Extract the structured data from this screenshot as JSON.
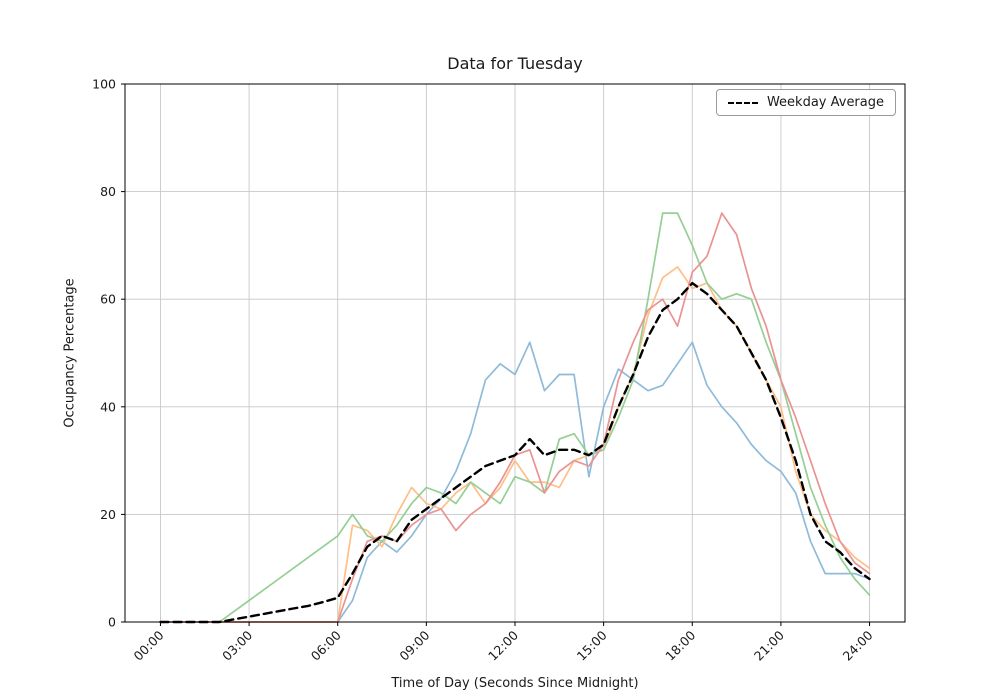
{
  "chart_data": {
    "type": "line",
    "title": "Data for Tuesday",
    "xlabel": "Time of Day (Seconds Since Midnight)",
    "ylabel": "Occupancy Percentage",
    "xlim": [
      -1.2,
      25.2
    ],
    "ylim": [
      0,
      100
    ],
    "grid": true,
    "legend_position": "upper right",
    "xticks": {
      "positions": [
        0,
        3,
        6,
        9,
        12,
        15,
        18,
        21,
        24
      ],
      "labels": [
        "00:00",
        "03:00",
        "06:00",
        "09:00",
        "12:00",
        "15:00",
        "18:00",
        "21:00",
        "24:00"
      ]
    },
    "yticks": [
      0,
      20,
      40,
      60,
      80,
      100
    ],
    "x_hours": [
      0,
      0.5,
      1,
      1.5,
      2,
      2.5,
      3,
      3.5,
      4,
      4.5,
      5,
      5.5,
      6,
      6.5,
      7,
      7.5,
      8,
      8.5,
      9,
      9.5,
      10,
      10.5,
      11,
      11.5,
      12,
      12.5,
      13,
      13.5,
      14,
      14.5,
      15,
      15.5,
      16,
      16.5,
      17,
      17.5,
      18,
      18.5,
      19,
      19.5,
      20,
      20.5,
      21,
      21.5,
      22,
      22.5,
      23,
      23.5,
      24
    ],
    "series": [
      {
        "id": "line-blue",
        "color": "#8fbbd9",
        "dashed": false,
        "values": [
          0,
          0,
          0,
          0,
          0,
          0,
          0,
          0,
          0,
          0,
          0,
          0,
          0,
          4,
          12,
          15,
          13,
          16,
          20,
          23,
          28,
          35,
          45,
          48,
          46,
          52,
          43,
          46,
          46,
          27,
          40,
          47,
          45,
          43,
          44,
          48,
          52,
          44,
          40,
          37,
          33,
          30,
          28,
          24,
          15,
          9,
          9,
          9,
          8
        ]
      },
      {
        "id": "line-orange",
        "color": "#ffbf86",
        "dashed": false,
        "values": [
          0,
          0,
          0,
          0,
          0,
          0,
          0,
          0,
          0,
          0,
          0,
          0,
          0,
          18,
          17,
          14,
          20,
          25,
          22,
          21,
          24,
          26,
          22,
          25,
          30,
          26,
          26,
          25,
          30,
          31,
          32,
          40,
          46,
          57,
          64,
          66,
          62,
          63,
          58,
          55,
          50,
          45,
          40,
          28,
          20,
          17,
          15,
          12,
          10
        ]
      },
      {
        "id": "line-green",
        "color": "#95cf95",
        "dashed": false,
        "values": [
          0,
          0,
          0,
          0,
          0,
          2,
          4,
          6,
          8,
          10,
          12,
          14,
          16,
          20,
          16,
          15,
          18,
          22,
          25,
          24,
          22,
          26,
          24,
          22,
          27,
          26,
          24,
          34,
          35,
          31,
          32,
          38,
          45,
          60,
          76,
          76,
          70,
          63,
          60,
          61,
          60,
          52,
          45,
          35,
          25,
          18,
          12,
          8,
          5
        ]
      },
      {
        "id": "line-red",
        "color": "#ea9393",
        "dashed": false,
        "values": [
          0,
          0,
          0,
          0,
          0,
          0,
          0,
          0,
          0,
          0,
          0,
          0,
          0,
          8,
          15,
          16,
          15,
          18,
          20,
          21,
          17,
          20,
          22,
          26,
          31,
          32,
          24,
          28,
          30,
          29,
          33,
          45,
          52,
          58,
          60,
          55,
          65,
          68,
          76,
          72,
          62,
          55,
          45,
          38,
          30,
          22,
          15,
          11,
          9
        ]
      },
      {
        "id": "weekday-average",
        "name": "Weekday Average",
        "color": "#000000",
        "dashed": true,
        "values": [
          0,
          0,
          0,
          0,
          0,
          0.5,
          1,
          1.5,
          2,
          2.5,
          3,
          3.7,
          4.5,
          9,
          14,
          16,
          15,
          19,
          21,
          23,
          25,
          27,
          29,
          30,
          31,
          34,
          31,
          32,
          32,
          31,
          33,
          40,
          46,
          53,
          58,
          60,
          63,
          61,
          58,
          55,
          50,
          45,
          38,
          30,
          20,
          15,
          13,
          10,
          8
        ]
      }
    ],
    "colors": {
      "grid": "#c8c8c8",
      "axis": "#000000",
      "text": "#1a1a1a"
    }
  }
}
